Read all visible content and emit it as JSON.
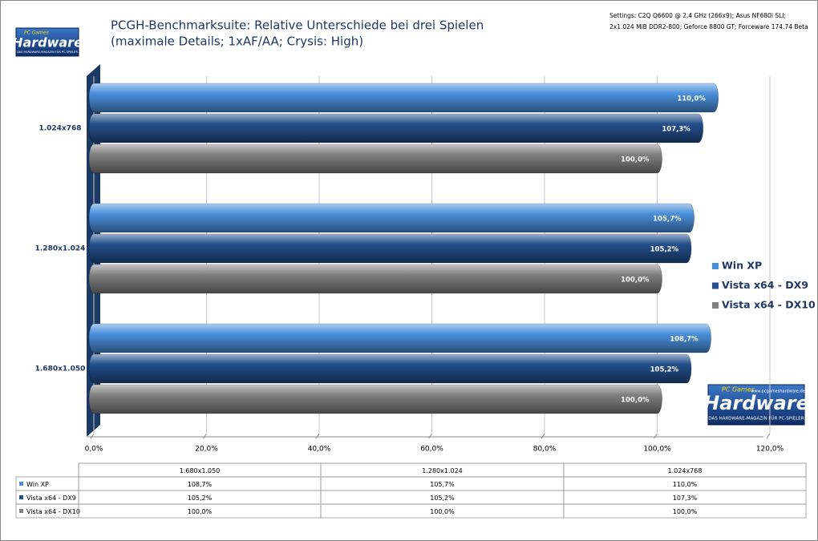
{
  "chart_data": {
    "type": "bar",
    "orientation": "horizontal",
    "title": [
      "PCGH-Benchmarksuite: Relative Unterschiede bei drei Spielen",
      "(maximale Details; 1xAF/AA; Crysis: High)"
    ],
    "subtitle": [
      "Settings: C2Q Q6600  @ 2,4 GHz (266x9); Asus NF680i SLI;",
      "2x1.024 MiB DDR2-800; Geforce 8800 GT; Forceware 174.74 Beta"
    ],
    "categories": [
      "1.680x1.050",
      "1.280x1.024",
      "1.024x768"
    ],
    "series": [
      {
        "name": "Win XP",
        "color": "#4a8fdc",
        "values": [
          108.7,
          105.7,
          110.0
        ],
        "value_labels": [
          "108,7%",
          "105,7%",
          "110,0%"
        ]
      },
      {
        "name": "Vista x64 - DX9",
        "color": "#234f8c",
        "values": [
          105.2,
          105.2,
          107.3
        ],
        "value_labels": [
          "105,2%",
          "105,2%",
          "107,3%"
        ]
      },
      {
        "name": "Vista x64 - DX10",
        "color": "#808080",
        "values": [
          100.0,
          100.0,
          100.0
        ],
        "value_labels": [
          "100,0%",
          "100,0%",
          "100,0%"
        ]
      }
    ],
    "xlim": [
      0,
      120
    ],
    "xticks": [
      {
        "value": 0,
        "label": "0,0%"
      },
      {
        "value": 20,
        "label": "20,0%"
      },
      {
        "value": 40,
        "label": "40,0%"
      },
      {
        "value": 60,
        "label": "60,0%"
      },
      {
        "value": 80,
        "label": "80,0%"
      },
      {
        "value": 100,
        "label": "100,0%"
      },
      {
        "value": 120,
        "label": "120,0%"
      }
    ],
    "grid": true,
    "legend": "right",
    "data_table": true
  },
  "logo": {
    "small": "PC Games",
    "brand": "Hardware",
    "url": "www.pcgameshardware.de",
    "tagline": "DAS HARDWARE-MAGAZIN FÜR PC-SPIELER"
  }
}
